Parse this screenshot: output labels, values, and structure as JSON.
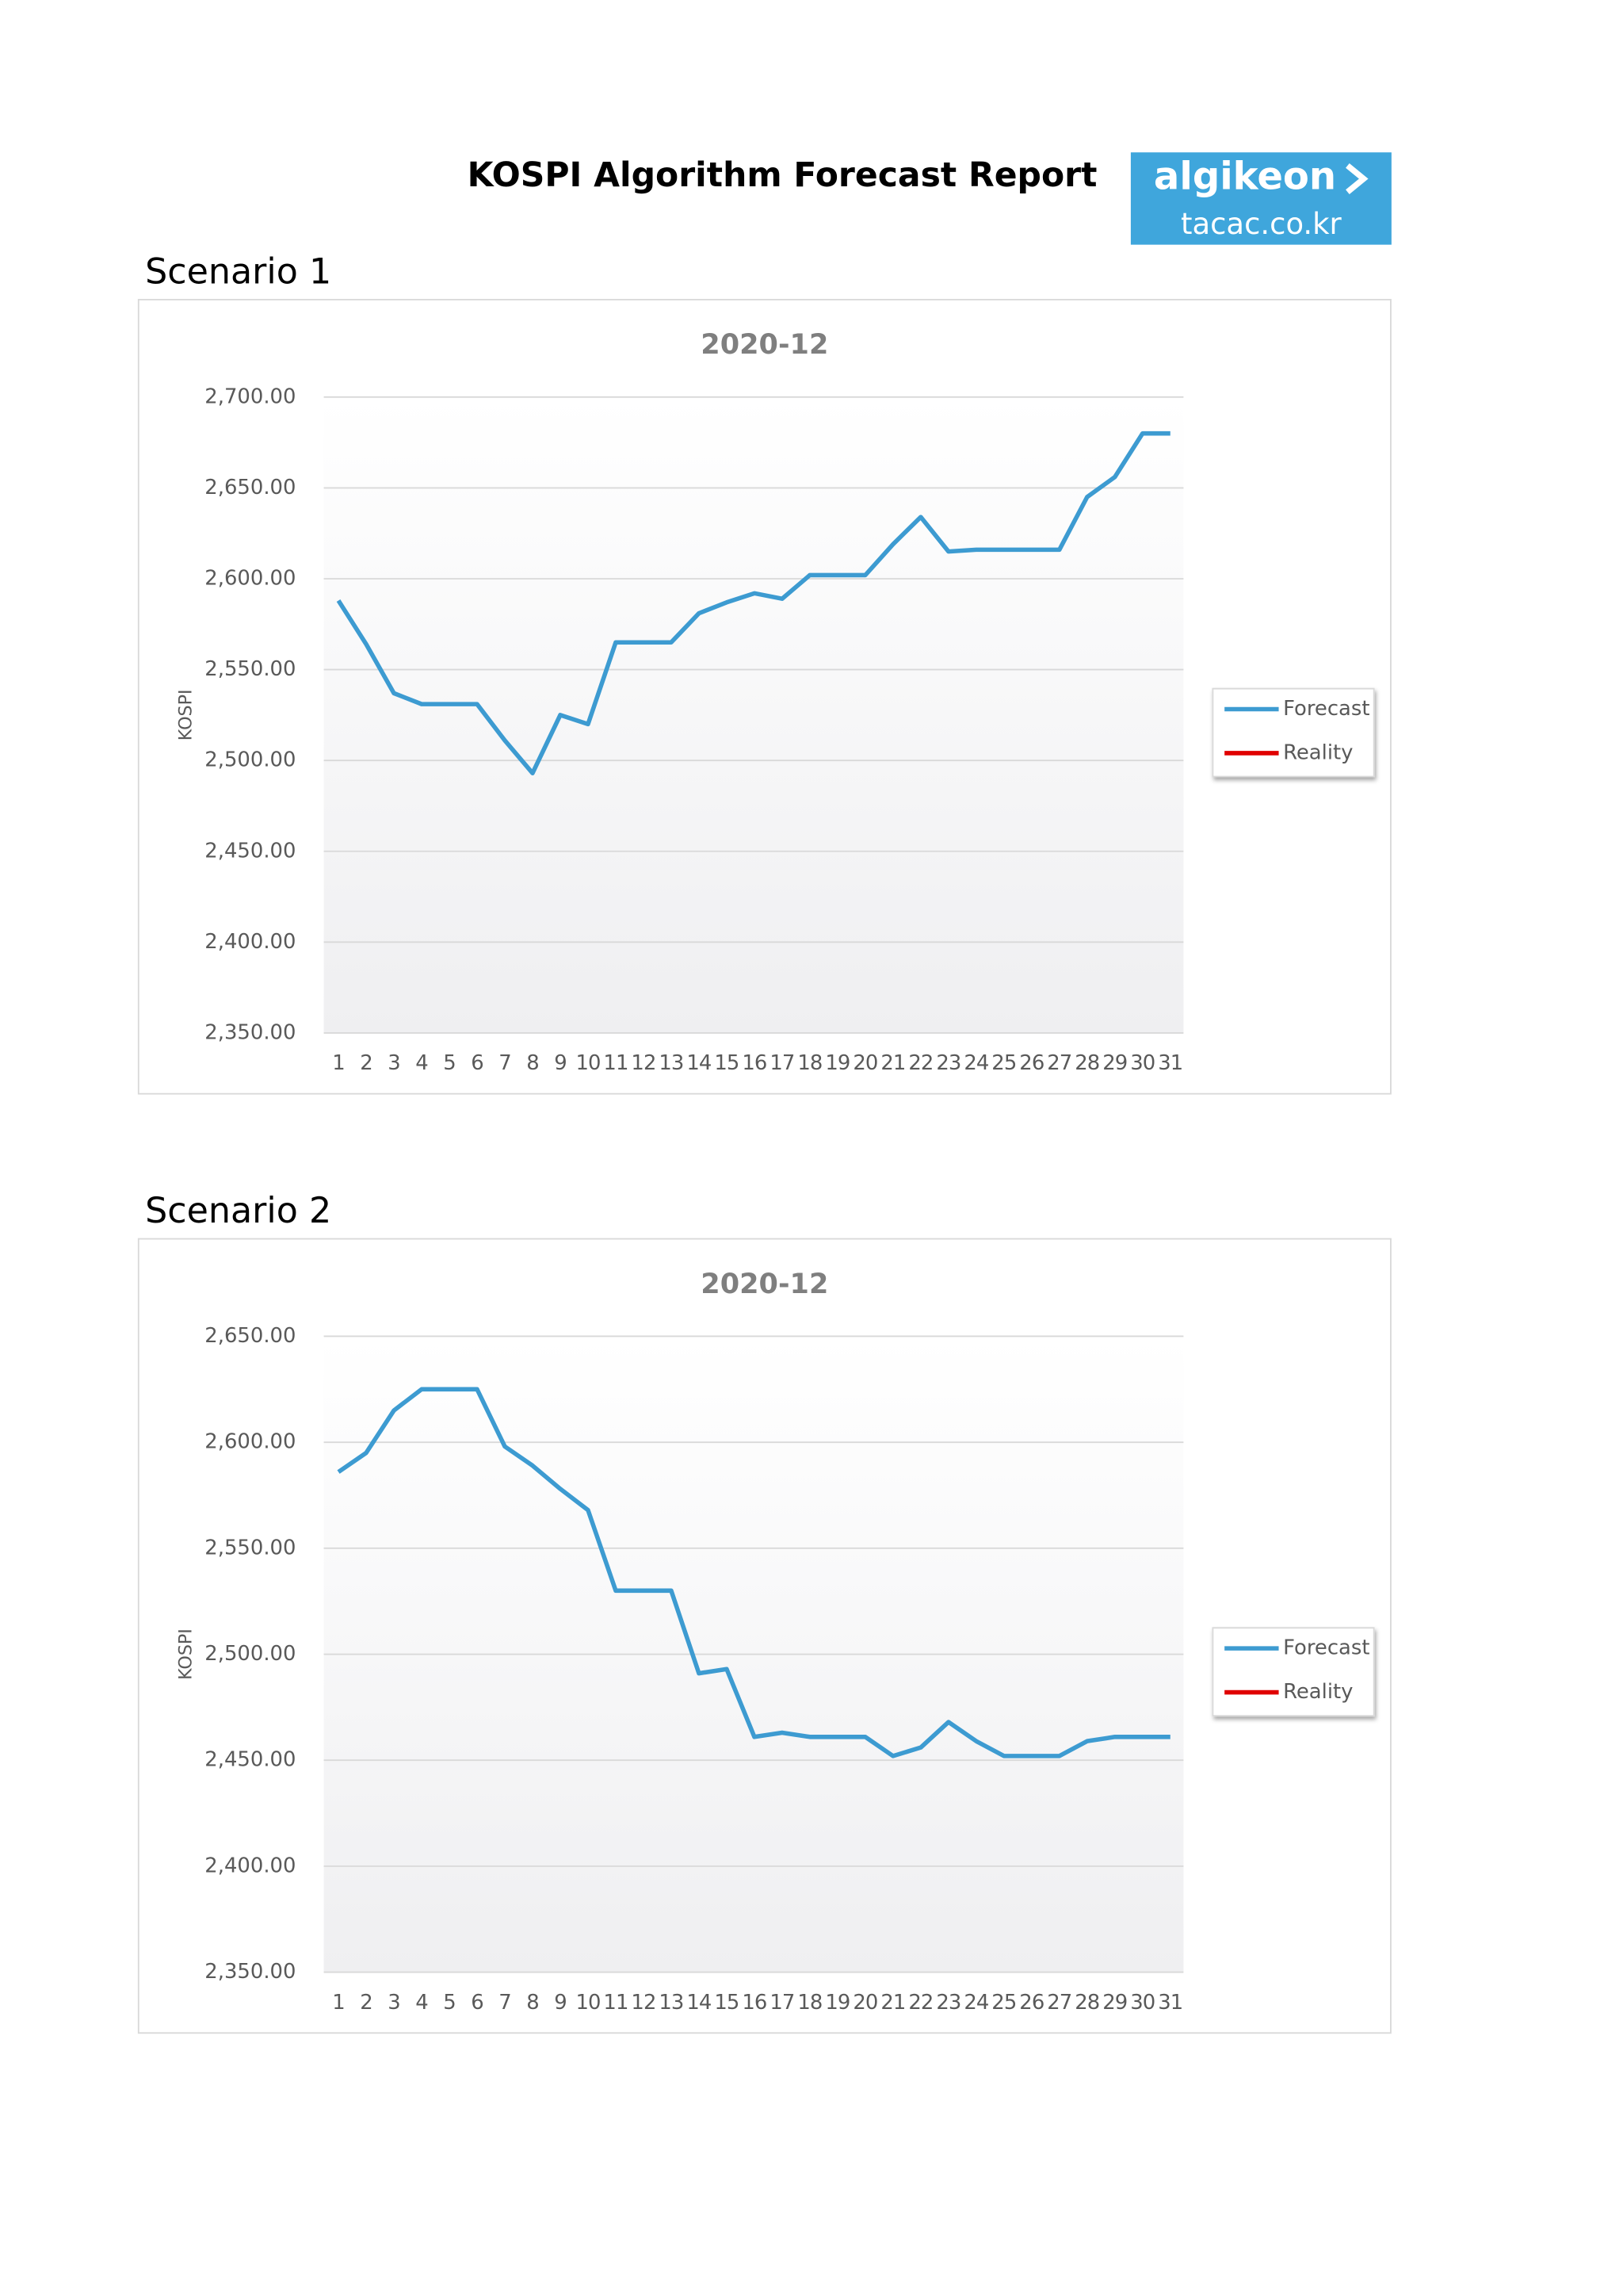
{
  "header": {
    "title": "KOSPI Algorithm Forecast Report",
    "logo": {
      "name": "algikeon",
      "site": "tacac.co.kr"
    }
  },
  "chart_data": [
    {
      "type": "line",
      "heading": "Scenario 1",
      "title": "2020-12",
      "y_label": "KOSPI",
      "categories": [
        "1",
        "2",
        "3",
        "4",
        "5",
        "6",
        "7",
        "8",
        "9",
        "10",
        "11",
        "12",
        "13",
        "14",
        "15",
        "16",
        "17",
        "18",
        "19",
        "20",
        "21",
        "22",
        "23",
        "24",
        "25",
        "26",
        "27",
        "28",
        "29",
        "30",
        "31"
      ],
      "series": [
        {
          "name": "Forecast",
          "color": "#3d9bd1",
          "values": [
            2588,
            2564,
            2537,
            2531,
            2531,
            2531,
            2511,
            2493,
            2525,
            2520,
            2565,
            2565,
            2565,
            2581,
            2587,
            2592,
            2589,
            2602,
            2602,
            2602,
            2619,
            2634,
            2615,
            2616,
            2616,
            2616,
            2616,
            2645,
            2656,
            2680,
            2680
          ]
        },
        {
          "name": "Reality",
          "color": "#e00000",
          "values": [
            null,
            null,
            null,
            null,
            null,
            null,
            null,
            null,
            null,
            null,
            null,
            null,
            null,
            null,
            null,
            null,
            null,
            null,
            null,
            null,
            null,
            null,
            null,
            null,
            null,
            null,
            null,
            null,
            null,
            null,
            null
          ]
        }
      ],
      "ylim": [
        2350,
        2700
      ],
      "yticks": [
        {
          "value": 2350,
          "label": "2,350.00"
        },
        {
          "value": 2400,
          "label": "2,400.00"
        },
        {
          "value": 2450,
          "label": "2,450.00"
        },
        {
          "value": 2500,
          "label": "2,500.00"
        },
        {
          "value": 2550,
          "label": "2,550.00"
        },
        {
          "value": 2600,
          "label": "2,600.00"
        },
        {
          "value": 2650,
          "label": "2,650.00"
        },
        {
          "value": 2700,
          "label": "2,700.00"
        }
      ],
      "grid": true,
      "legend": "right"
    },
    {
      "type": "line",
      "heading": "Scenario 2",
      "title": "2020-12",
      "y_label": "KOSPI",
      "categories": [
        "1",
        "2",
        "3",
        "4",
        "5",
        "6",
        "7",
        "8",
        "9",
        "10",
        "11",
        "12",
        "13",
        "14",
        "15",
        "16",
        "17",
        "18",
        "19",
        "20",
        "21",
        "22",
        "23",
        "24",
        "25",
        "26",
        "27",
        "28",
        "29",
        "30",
        "31"
      ],
      "series": [
        {
          "name": "Forecast",
          "color": "#3d9bd1",
          "values": [
            2586,
            2595,
            2615,
            2625,
            2625,
            2625,
            2598,
            2589,
            2578,
            2568,
            2530,
            2530,
            2530,
            2491,
            2493,
            2461,
            2463,
            2461,
            2461,
            2461,
            2452,
            2456,
            2468,
            2459,
            2452,
            2452,
            2452,
            2459,
            2461,
            2461,
            2461
          ]
        },
        {
          "name": "Reality",
          "color": "#e00000",
          "values": [
            null,
            null,
            null,
            null,
            null,
            null,
            null,
            null,
            null,
            null,
            null,
            null,
            null,
            null,
            null,
            null,
            null,
            null,
            null,
            null,
            null,
            null,
            null,
            null,
            null,
            null,
            null,
            null,
            null,
            null,
            null
          ]
        }
      ],
      "ylim": [
        2350,
        2650
      ],
      "yticks": [
        {
          "value": 2350,
          "label": "2,350.00"
        },
        {
          "value": 2400,
          "label": "2,400.00"
        },
        {
          "value": 2450,
          "label": "2,450.00"
        },
        {
          "value": 2500,
          "label": "2,500.00"
        },
        {
          "value": 2550,
          "label": "2,550.00"
        },
        {
          "value": 2600,
          "label": "2,600.00"
        },
        {
          "value": 2650,
          "label": "2,650.00"
        }
      ],
      "grid": true,
      "legend": "right"
    }
  ]
}
